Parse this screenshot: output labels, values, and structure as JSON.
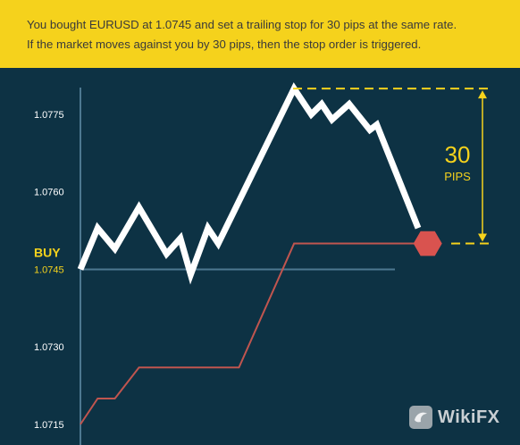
{
  "banner": {
    "line1": "You bought EURUSD at 1.0745 and set a trailing stop for 30 pips at the same rate.",
    "line2": "If the market moves against you by 30 pips, then the stop order is triggered."
  },
  "chart_data": {
    "type": "line",
    "title": "",
    "xlabel": "",
    "ylabel": "",
    "ylim": [
      1.0711,
      1.0784
    ],
    "y_ticks": [
      "1.0775",
      "1.0760",
      "1.0745",
      "1.0730",
      "1.0715"
    ],
    "grid": false,
    "buy_label": "BUY",
    "buy_rate": "1.0745",
    "buy_level": 1.0745,
    "pips_value": "30",
    "pips_unit": "PIPS",
    "series": [
      {
        "color": "#ffffff",
        "points": [
          [
            0,
            1.0745
          ],
          [
            5,
            1.0753
          ],
          [
            10,
            1.0749
          ],
          [
            17,
            1.0757
          ],
          [
            25,
            1.0748
          ],
          [
            29,
            1.0751
          ],
          [
            32,
            1.0744
          ],
          [
            37,
            1.0753
          ],
          [
            40,
            1.075
          ],
          [
            62,
            1.078
          ],
          [
            67,
            1.0775
          ],
          [
            70,
            1.0777
          ],
          [
            73,
            1.0774
          ],
          [
            78,
            1.0777
          ],
          [
            84,
            1.0772
          ],
          [
            86,
            1.0773
          ],
          [
            98,
            1.0753
          ]
        ]
      },
      {
        "color": "#c0554f",
        "points": [
          [
            0,
            1.0715
          ],
          [
            5,
            1.072
          ],
          [
            10,
            1.072
          ],
          [
            17,
            1.0726
          ],
          [
            46,
            1.0726
          ],
          [
            62,
            1.075
          ],
          [
            98,
            1.075
          ]
        ]
      }
    ],
    "stop_marker": {
      "x": 100,
      "y": 1.075,
      "color": "#d9534f"
    },
    "colors": {
      "background": "#0d3244",
      "accent": "#f5d21c",
      "axis": "#4d7890"
    }
  },
  "watermark": {
    "logo_icon": "wikifx-logo-icon",
    "text": "WikiFX"
  }
}
